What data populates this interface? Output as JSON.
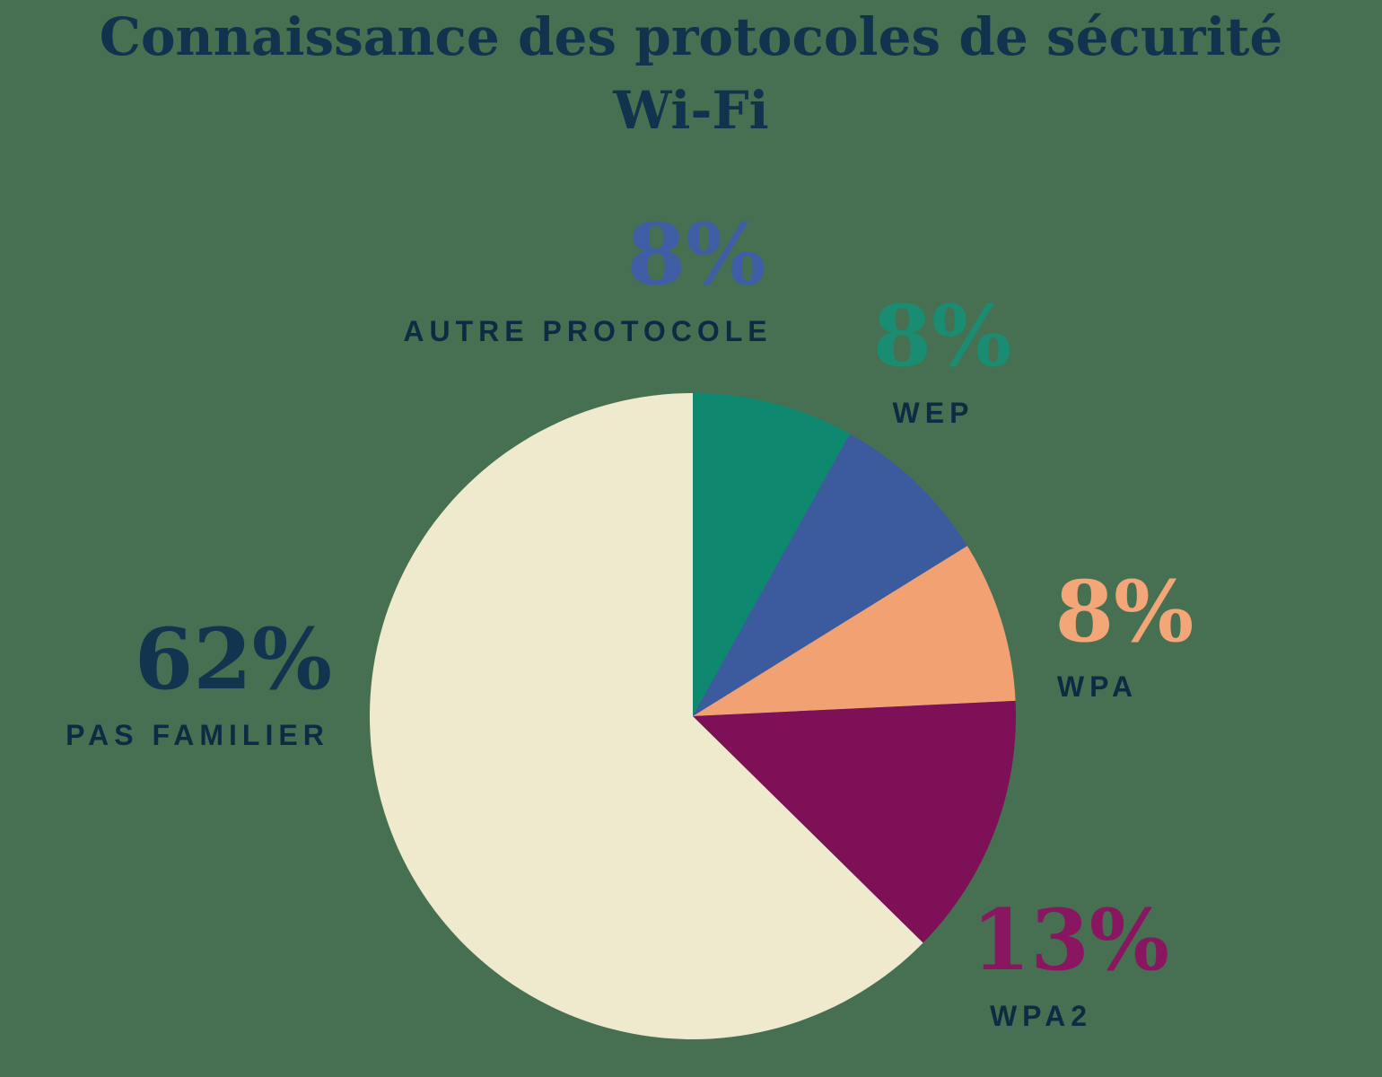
{
  "background_color": "#477052",
  "title": {
    "line1": "Connaissance des protocoles de sécurité",
    "line2": "Wi-Fi",
    "color": "#11334D"
  },
  "chart_data": {
    "type": "pie",
    "title": "Connaissance des protocoles de sécurité Wi-Fi",
    "start_angle_deg_from_top": 0,
    "direction": "clockwise",
    "values_sum": 99,
    "slices": [
      {
        "label": "WEP",
        "value": 8,
        "pct_text": "8%",
        "color": "#0F8870",
        "pct_color": "#1A8C71"
      },
      {
        "label": "AUTRE PROTOCOLE",
        "value": 8,
        "pct_text": "8%",
        "color": "#3B5B9E",
        "pct_color": "#3F5EA6"
      },
      {
        "label": "WPA",
        "value": 8,
        "pct_text": "8%",
        "color": "#F2A173",
        "pct_color": "#F3A678"
      },
      {
        "label": "WPA2",
        "value": 13,
        "pct_text": "13%",
        "color": "#7D1056",
        "pct_color": "#8A1560"
      },
      {
        "label": "PAS FAMILIER",
        "value": 62,
        "pct_text": "62%",
        "color": "#EFEACE",
        "pct_color": "#12344E"
      }
    ],
    "label_color": "#0F2B44",
    "legend_position": "around-chart",
    "grid": false
  }
}
